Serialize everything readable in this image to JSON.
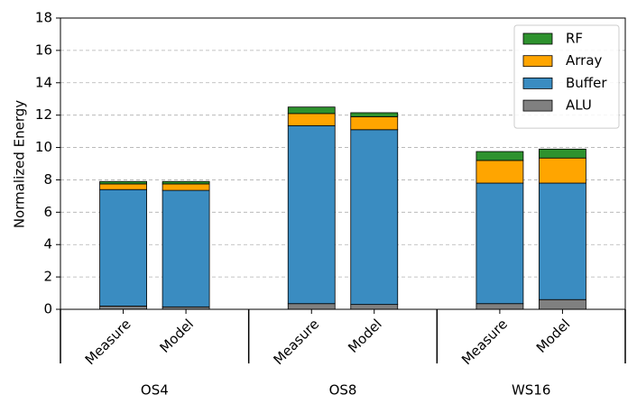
{
  "chart_data": {
    "type": "stacked-bar",
    "y_label": "Normalized Energy",
    "groups": [
      "OS4",
      "OS8",
      "WS16"
    ],
    "categories": [
      "Measure",
      "Model",
      "Measure",
      "Model",
      "Measure",
      "Model"
    ],
    "series": [
      {
        "name": "ALU",
        "color": "#808080",
        "values": [
          0.2,
          0.15,
          0.35,
          0.3,
          0.35,
          0.6
        ]
      },
      {
        "name": "Buffer",
        "color": "#3a8cc1",
        "values": [
          7.2,
          7.2,
          11.0,
          10.8,
          7.45,
          7.2
        ]
      },
      {
        "name": "Array",
        "color": "#ffa500",
        "values": [
          0.35,
          0.4,
          0.75,
          0.8,
          1.4,
          1.55
        ]
      },
      {
        "name": "RF",
        "color": "#2e922e",
        "values": [
          0.15,
          0.15,
          0.4,
          0.25,
          0.55,
          0.55
        ]
      }
    ],
    "ylim": [
      0,
      18
    ],
    "yticks": [
      0,
      2,
      4,
      6,
      8,
      10,
      12,
      14,
      16,
      18
    ],
    "grid": true
  }
}
